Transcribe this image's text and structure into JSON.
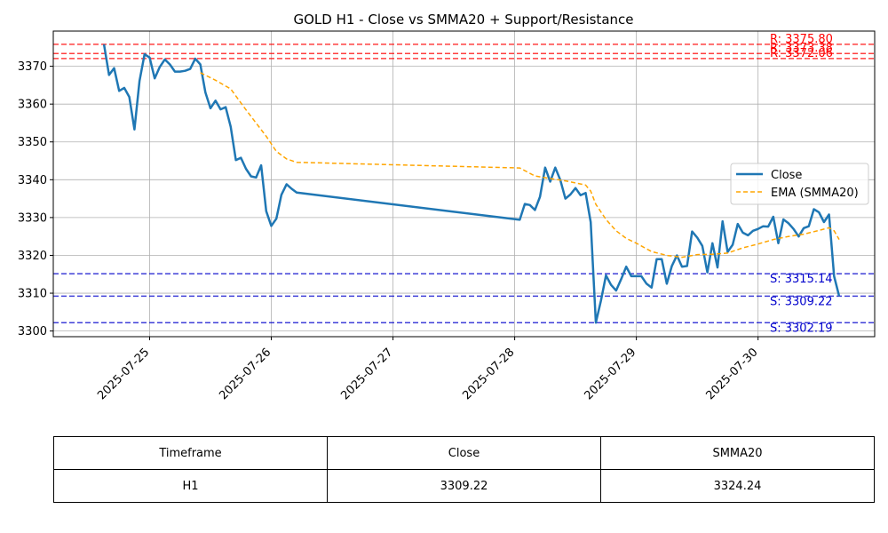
{
  "chart_data": {
    "type": "line",
    "title": "GOLD H1 - Close vs SMMA20 + Support/Resistance",
    "xlabel": "",
    "ylabel": "",
    "x_ticks": [
      "2025-07-25",
      "2025-07-26",
      "2025-07-27",
      "2025-07-28",
      "2025-07-29",
      "2025-07-30"
    ],
    "y_ticks": [
      3300,
      3310,
      3320,
      3330,
      3340,
      3350,
      3360,
      3370
    ],
    "xlim": [
      "2025-07-24 05:00",
      "2025-07-30 23:00"
    ],
    "ylim": [
      3298.5,
      3379.3
    ],
    "grid": true,
    "legend_position": "center-right",
    "colors": {
      "close": "#1f77b4",
      "smma": "#ffa500",
      "resistance": "#ff0000",
      "support": "#0000cc"
    },
    "series": [
      {
        "name": "Close",
        "style": "solid",
        "points": [
          [
            "2025-07-24 15:00",
            3375.8
          ],
          [
            "2025-07-24 16:00",
            3367.7
          ],
          [
            "2025-07-24 17:00",
            3369.5
          ],
          [
            "2025-07-24 18:00",
            3363.5
          ],
          [
            "2025-07-24 19:00",
            3364.3
          ],
          [
            "2025-07-24 20:00",
            3361.9
          ],
          [
            "2025-07-24 21:00",
            3353.3
          ],
          [
            "2025-07-24 22:00",
            3366.1
          ],
          [
            "2025-07-24 23:00",
            3373.2
          ],
          [
            "2025-07-25 00:00",
            3372.3
          ],
          [
            "2025-07-25 01:00",
            3366.8
          ],
          [
            "2025-07-25 02:00",
            3369.8
          ],
          [
            "2025-07-25 03:00",
            3371.8
          ],
          [
            "2025-07-25 04:00",
            3370.5
          ],
          [
            "2025-07-25 05:00",
            3368.6
          ],
          [
            "2025-07-25 06:00",
            3368.6
          ],
          [
            "2025-07-25 07:00",
            3368.8
          ],
          [
            "2025-07-25 08:00",
            3369.3
          ],
          [
            "2025-07-25 09:00",
            3372.0
          ],
          [
            "2025-07-25 10:00",
            3370.5
          ],
          [
            "2025-07-25 11:00",
            3363.1
          ],
          [
            "2025-07-25 12:00",
            3358.9
          ],
          [
            "2025-07-25 13:00",
            3360.9
          ],
          [
            "2025-07-25 14:00",
            3358.6
          ],
          [
            "2025-07-25 15:00",
            3359.2
          ],
          [
            "2025-07-25 16:00",
            3354.0
          ],
          [
            "2025-07-25 17:00",
            3345.2
          ],
          [
            "2025-07-25 18:00",
            3345.8
          ],
          [
            "2025-07-25 19:00",
            3342.9
          ],
          [
            "2025-07-25 20:00",
            3340.9
          ],
          [
            "2025-07-25 21:00",
            3340.6
          ],
          [
            "2025-07-25 22:00",
            3343.8
          ],
          [
            "2025-07-25 23:00",
            3331.7
          ],
          [
            "2025-07-26 00:00",
            3327.8
          ],
          [
            "2025-07-26 01:00",
            3329.7
          ],
          [
            "2025-07-26 02:00",
            3336.0
          ],
          [
            "2025-07-26 03:00",
            3338.8
          ],
          [
            "2025-07-26 04:00",
            3337.6
          ],
          [
            "2025-07-26 05:00",
            3336.6
          ],
          [
            "2025-07-28 01:00",
            3329.4
          ],
          [
            "2025-07-28 02:00",
            3333.6
          ],
          [
            "2025-07-28 03:00",
            3333.3
          ],
          [
            "2025-07-28 04:00",
            3332.0
          ],
          [
            "2025-07-28 05:00",
            3335.5
          ],
          [
            "2025-07-28 06:00",
            3343.2
          ],
          [
            "2025-07-28 07:00",
            3339.5
          ],
          [
            "2025-07-28 08:00",
            3343.2
          ],
          [
            "2025-07-28 09:00",
            3339.9
          ],
          [
            "2025-07-28 10:00",
            3335.0
          ],
          [
            "2025-07-28 11:00",
            3336.1
          ],
          [
            "2025-07-28 12:00",
            3337.8
          ],
          [
            "2025-07-28 13:00",
            3335.9
          ],
          [
            "2025-07-28 14:00",
            3336.5
          ],
          [
            "2025-07-28 15:00",
            3328.8
          ],
          [
            "2025-07-28 16:00",
            3302.2
          ],
          [
            "2025-07-28 17:00",
            3308.0
          ],
          [
            "2025-07-28 18:00",
            3314.7
          ],
          [
            "2025-07-28 19:00",
            3312.2
          ],
          [
            "2025-07-28 20:00",
            3310.7
          ],
          [
            "2025-07-28 21:00",
            3313.7
          ],
          [
            "2025-07-28 22:00",
            3317.0
          ],
          [
            "2025-07-28 23:00",
            3314.5
          ],
          [
            "2025-07-29 00:00",
            3314.5
          ],
          [
            "2025-07-29 01:00",
            3314.5
          ],
          [
            "2025-07-29 02:00",
            3312.5
          ],
          [
            "2025-07-29 03:00",
            3311.5
          ],
          [
            "2025-07-29 04:00",
            3319.0
          ],
          [
            "2025-07-29 05:00",
            3319.0
          ],
          [
            "2025-07-29 06:00",
            3312.5
          ],
          [
            "2025-07-29 07:00",
            3317.2
          ],
          [
            "2025-07-29 08:00",
            3320.0
          ],
          [
            "2025-07-29 09:00",
            3317.0
          ],
          [
            "2025-07-29 10:00",
            3317.2
          ],
          [
            "2025-07-29 11:00",
            3326.3
          ],
          [
            "2025-07-29 12:00",
            3324.7
          ],
          [
            "2025-07-29 13:00",
            3322.5
          ],
          [
            "2025-07-29 14:00",
            3315.5
          ],
          [
            "2025-07-29 15:00",
            3323.2
          ],
          [
            "2025-07-29 16:00",
            3316.8
          ],
          [
            "2025-07-29 17:00",
            3329.0
          ],
          [
            "2025-07-29 18:00",
            3320.9
          ],
          [
            "2025-07-29 19:00",
            3322.8
          ],
          [
            "2025-07-29 20:00",
            3328.3
          ],
          [
            "2025-07-29 21:00",
            3326.0
          ],
          [
            "2025-07-29 22:00",
            3325.3
          ],
          [
            "2025-07-29 23:00",
            3326.5
          ],
          [
            "2025-07-30 00:00",
            3327.0
          ],
          [
            "2025-07-30 01:00",
            3327.7
          ],
          [
            "2025-07-30 02:00",
            3327.6
          ],
          [
            "2025-07-30 03:00",
            3330.2
          ],
          [
            "2025-07-30 04:00",
            3323.2
          ],
          [
            "2025-07-30 05:00",
            3329.5
          ],
          [
            "2025-07-30 06:00",
            3328.5
          ],
          [
            "2025-07-30 07:00",
            3327.0
          ],
          [
            "2025-07-30 08:00",
            3325.0
          ],
          [
            "2025-07-30 09:00",
            3327.2
          ],
          [
            "2025-07-30 10:00",
            3327.7
          ],
          [
            "2025-07-30 11:00",
            3332.2
          ],
          [
            "2025-07-30 12:00",
            3331.4
          ],
          [
            "2025-07-30 13:00",
            3328.8
          ],
          [
            "2025-07-30 14:00",
            3330.8
          ],
          [
            "2025-07-30 15:00",
            3314.5
          ],
          [
            "2025-07-30 16:00",
            3309.22
          ]
        ]
      },
      {
        "name": "EMA (SMMA20)",
        "style": "dashed",
        "points": [
          [
            "2025-07-25 10:00",
            3368.3
          ],
          [
            "2025-07-25 13:00",
            3366.3
          ],
          [
            "2025-07-25 16:00",
            3364.0
          ],
          [
            "2025-07-25 19:00",
            3358.5
          ],
          [
            "2025-07-25 21:00",
            3355.0
          ],
          [
            "2025-07-25 23:00",
            3351.5
          ],
          [
            "2025-07-26 01:00",
            3347.5
          ],
          [
            "2025-07-26 03:00",
            3345.5
          ],
          [
            "2025-07-26 05:00",
            3344.6
          ],
          [
            "2025-07-28 01:00",
            3343.1
          ],
          [
            "2025-07-28 04:00",
            3341.0
          ],
          [
            "2025-07-28 07:00",
            3340.3
          ],
          [
            "2025-07-28 10:00",
            3339.7
          ],
          [
            "2025-07-28 14:00",
            3338.6
          ],
          [
            "2025-07-28 15:00",
            3337.0
          ],
          [
            "2025-07-28 16:00",
            3333.5
          ],
          [
            "2025-07-28 18:00",
            3329.5
          ],
          [
            "2025-07-28 20:00",
            3326.5
          ],
          [
            "2025-07-28 22:00",
            3324.5
          ],
          [
            "2025-07-29 00:00",
            3323.2
          ],
          [
            "2025-07-29 03:00",
            3321.0
          ],
          [
            "2025-07-29 06:00",
            3320.0
          ],
          [
            "2025-07-29 09:00",
            3319.5
          ],
          [
            "2025-07-29 12:00",
            3320.2
          ],
          [
            "2025-07-29 15:00",
            3320.3
          ],
          [
            "2025-07-29 18:00",
            3320.6
          ],
          [
            "2025-07-29 21:00",
            3322.0
          ],
          [
            "2025-07-30 00:00",
            3323.0
          ],
          [
            "2025-07-30 03:00",
            3324.2
          ],
          [
            "2025-07-30 06:00",
            3325.0
          ],
          [
            "2025-07-30 09:00",
            3325.6
          ],
          [
            "2025-07-30 12:00",
            3326.6
          ],
          [
            "2025-07-30 14:00",
            3327.3
          ],
          [
            "2025-07-30 15:00",
            3326.5
          ],
          [
            "2025-07-30 16:00",
            3324.2
          ]
        ]
      }
    ],
    "resistance": [
      3375.8,
      3373.38,
      3372.06
    ],
    "support": [
      3315.14,
      3309.22,
      3302.19
    ],
    "resistance_labels": [
      "R: 3375.80",
      "R: 3373.38",
      "R: 3372.06"
    ],
    "support_labels": [
      "S: 3315.14",
      "S: 3309.22",
      "S: 3302.19"
    ]
  },
  "table": {
    "headers": [
      "Timeframe",
      "Close",
      "SMMA20"
    ],
    "rows": [
      [
        "H1",
        "3309.22",
        "3324.24"
      ]
    ]
  }
}
